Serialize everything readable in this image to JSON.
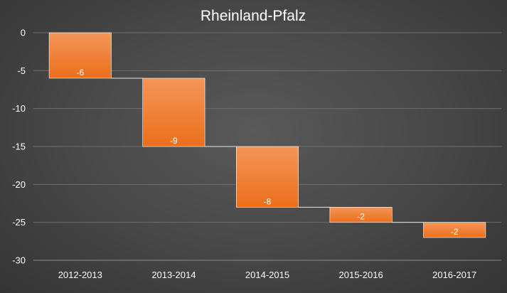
{
  "chart_data": {
    "type": "bar",
    "subtype": "waterfall",
    "title": "Rheinland-Pfalz",
    "categories": [
      "2012-2013",
      "2013-2014",
      "2014-2015",
      "2015-2016",
      "2016-2017"
    ],
    "values": [
      -6,
      -9,
      -8,
      -2,
      -2
    ],
    "ranges": [
      [
        0,
        -6
      ],
      [
        -6,
        -15
      ],
      [
        -15,
        -23
      ],
      [
        -23,
        -25
      ],
      [
        -25,
        -27
      ]
    ],
    "data_labels": [
      "-6",
      "-9",
      "-8",
      "-2",
      "-2"
    ],
    "ylim": [
      -30,
      0
    ],
    "yticks": [
      0,
      -5,
      -10,
      -15,
      -20,
      -25,
      -30
    ],
    "ytick_labels": [
      "0",
      "-5",
      "-10",
      "-15",
      "-20",
      "-25",
      "-30"
    ],
    "xlabel": "",
    "ylabel": "",
    "grid": true,
    "legend": "none",
    "bar_color_top": "#f4955a",
    "bar_color_bottom": "#eb6f1a",
    "bar_edge_color": "#ffffff",
    "connector_color": "#e6e6e6",
    "background_color": "#474747"
  }
}
